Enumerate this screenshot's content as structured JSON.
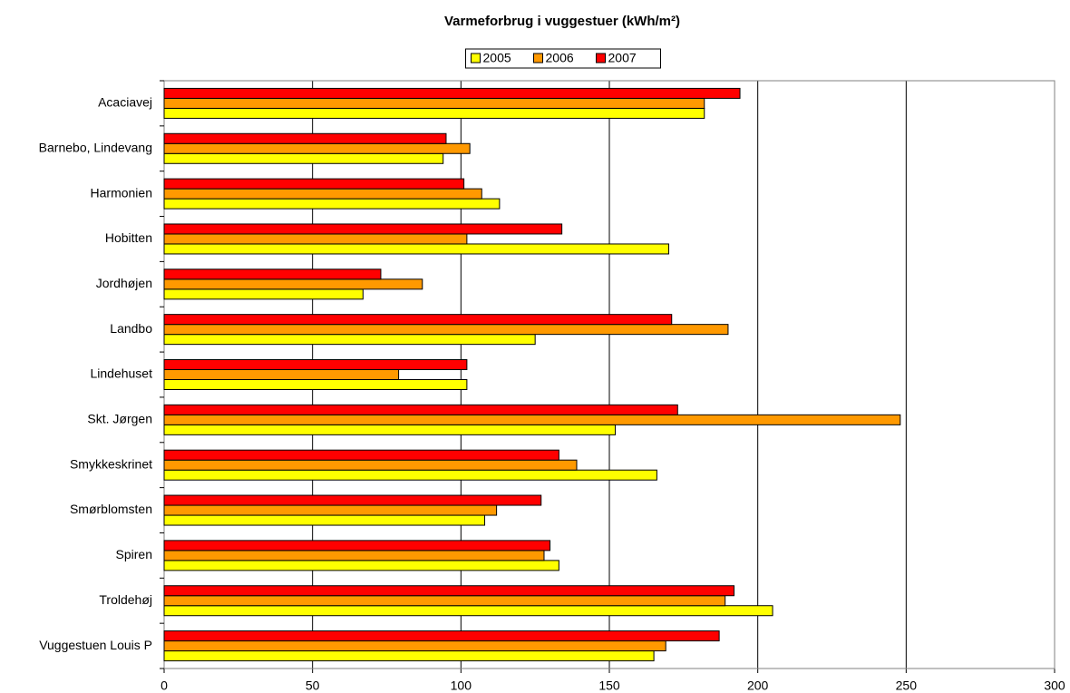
{
  "chart_data": {
    "type": "bar",
    "orientation": "horizontal",
    "title": "Varmeforbrug i vuggestuer (kWh/m²)",
    "categories": [
      "Acaciavej",
      "Barnebo, Lindevang",
      "Harmonien",
      "Hobitten",
      "Jordhøjen",
      "Landbo",
      "Lindehuset",
      "Skt. Jørgen",
      "Smykkeskrinet",
      "Smørblomsten",
      "Spiren",
      "Troldehøj",
      "Vuggestuen Louis P"
    ],
    "series": [
      {
        "name": "2005",
        "color": "#ffff00",
        "values": [
          182,
          94,
          113,
          170,
          67,
          125,
          102,
          152,
          166,
          108,
          133,
          205,
          165
        ]
      },
      {
        "name": "2006",
        "color": "#ff9900",
        "values": [
          182,
          103,
          107,
          102,
          87,
          190,
          79,
          248,
          139,
          112,
          128,
          189,
          169
        ]
      },
      {
        "name": "2007",
        "color": "#ff0000",
        "values": [
          194,
          95,
          101,
          134,
          73,
          171,
          102,
          173,
          133,
          127,
          130,
          192,
          187
        ]
      }
    ],
    "xlim": [
      0,
      300
    ],
    "xticks": [
      0,
      50,
      100,
      150,
      200,
      250,
      300
    ],
    "grid": true,
    "legend": "top"
  }
}
